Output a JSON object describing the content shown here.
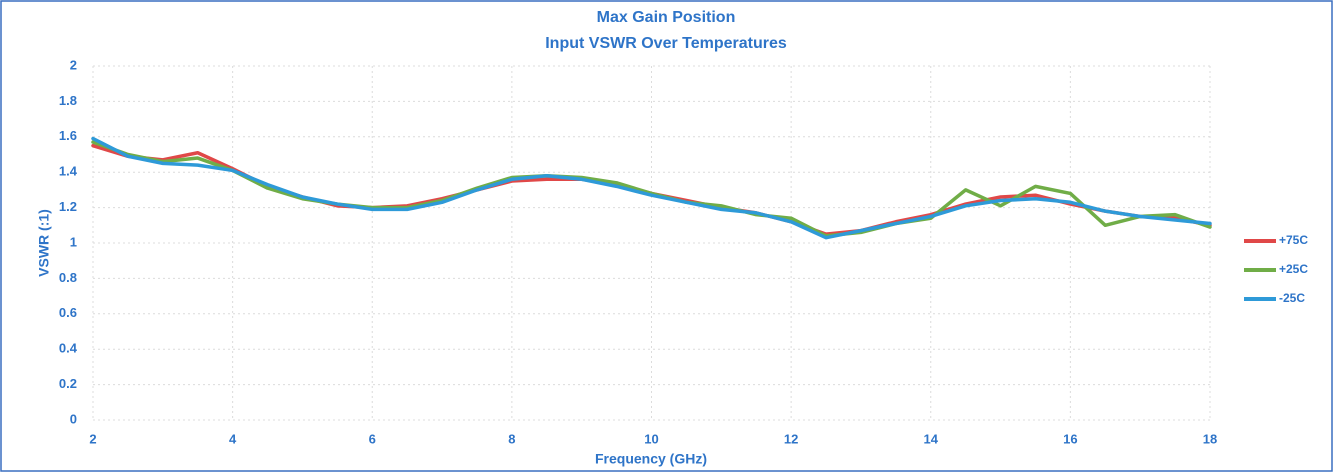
{
  "chart_data": {
    "type": "line",
    "title": "Max Gain Position",
    "subtitle": "Input VSWR Over Temperatures",
    "x_label": "Frequency (GHz)",
    "y_label": "VSWR (:1)",
    "x": [
      2,
      2.5,
      3,
      3.5,
      4,
      4.5,
      5,
      5.5,
      6,
      6.5,
      7,
      7.5,
      8,
      8.5,
      9,
      9.5,
      10,
      10.5,
      11,
      11.5,
      12,
      12.5,
      13,
      13.5,
      14,
      14.5,
      15,
      15.5,
      16,
      16.5,
      17,
      17.5,
      18
    ],
    "series": [
      {
        "name": "+75C",
        "color": "#e04848",
        "values": [
          1.55,
          1.49,
          1.47,
          1.51,
          1.42,
          1.32,
          1.26,
          1.21,
          1.2,
          1.21,
          1.25,
          1.3,
          1.35,
          1.36,
          1.36,
          1.33,
          1.28,
          1.24,
          1.2,
          1.17,
          1.12,
          1.05,
          1.07,
          1.12,
          1.16,
          1.22,
          1.26,
          1.27,
          1.22,
          1.18,
          1.15,
          1.14,
          1.1
        ]
      },
      {
        "name": "+25C",
        "color": "#70ad47",
        "values": [
          1.57,
          1.5,
          1.46,
          1.48,
          1.41,
          1.31,
          1.25,
          1.22,
          1.2,
          1.2,
          1.24,
          1.31,
          1.37,
          1.38,
          1.37,
          1.34,
          1.28,
          1.23,
          1.21,
          1.16,
          1.14,
          1.04,
          1.06,
          1.11,
          1.14,
          1.3,
          1.21,
          1.32,
          1.28,
          1.1,
          1.15,
          1.16,
          1.09
        ]
      },
      {
        "name": "-25C",
        "color": "#2e9ad8",
        "values": [
          1.59,
          1.49,
          1.45,
          1.44,
          1.41,
          1.33,
          1.26,
          1.22,
          1.19,
          1.19,
          1.23,
          1.3,
          1.36,
          1.38,
          1.36,
          1.32,
          1.27,
          1.23,
          1.19,
          1.17,
          1.12,
          1.03,
          1.07,
          1.11,
          1.15,
          1.21,
          1.24,
          1.25,
          1.23,
          1.18,
          1.15,
          1.13,
          1.11
        ]
      }
    ],
    "xlim": [
      2,
      18
    ],
    "xticks": [
      2,
      4,
      6,
      8,
      10,
      12,
      14,
      16,
      18
    ],
    "ylim": [
      0,
      2
    ],
    "yticks": [
      0,
      0.2,
      0.4,
      0.6,
      0.8,
      1,
      1.2,
      1.4,
      1.6,
      1.8,
      2
    ],
    "grid": true,
    "legend": "right"
  }
}
